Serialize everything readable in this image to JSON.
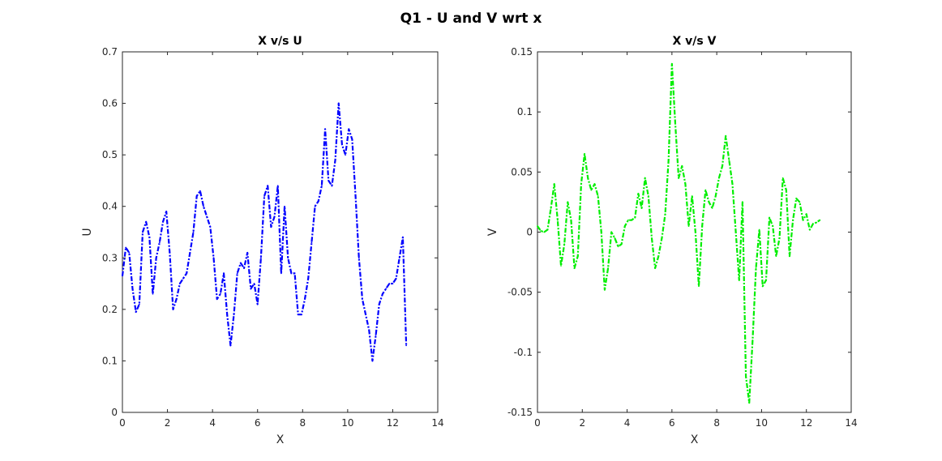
{
  "figure": {
    "title": "Q1 - U and V wrt x"
  },
  "chart_data": [
    {
      "type": "line",
      "title": "X v/s U",
      "xlabel": "X",
      "ylabel": "U",
      "xlim": [
        0,
        14
      ],
      "ylim": [
        0,
        0.7
      ],
      "xticks": [
        0,
        2,
        4,
        6,
        8,
        10,
        12,
        14
      ],
      "yticks": [
        0,
        0.1,
        0.2,
        0.3,
        0.4,
        0.5,
        0.6,
        0.7
      ],
      "xticklabels": [
        "0",
        "2",
        "4",
        "6",
        "8",
        "10",
        "12",
        "14"
      ],
      "yticklabels": [
        "0",
        "0.1",
        "0.2",
        "0.3",
        "0.4",
        "0.5",
        "0.6",
        "0.7"
      ],
      "grid": false,
      "series": [
        {
          "color": "#0000ff",
          "line_style": "dash-dot",
          "x": [
            0,
            0.15,
            0.3,
            0.45,
            0.6,
            0.75,
            0.9,
            1.05,
            1.2,
            1.35,
            1.5,
            1.65,
            1.8,
            1.95,
            2.1,
            2.25,
            2.4,
            2.55,
            2.7,
            2.85,
            3.0,
            3.15,
            3.3,
            3.45,
            3.6,
            3.75,
            3.9,
            4.05,
            4.2,
            4.35,
            4.5,
            4.65,
            4.8,
            4.95,
            5.1,
            5.25,
            5.4,
            5.55,
            5.7,
            5.85,
            6.0,
            6.15,
            6.3,
            6.45,
            6.6,
            6.75,
            6.9,
            7.05,
            7.2,
            7.35,
            7.5,
            7.65,
            7.8,
            7.95,
            8.1,
            8.25,
            8.4,
            8.55,
            8.7,
            8.85,
            9.0,
            9.15,
            9.3,
            9.45,
            9.6,
            9.75,
            9.9,
            10.05,
            10.2,
            10.35,
            10.5,
            10.65,
            10.8,
            10.95,
            11.1,
            11.25,
            11.4,
            11.55,
            11.7,
            11.85,
            12.0,
            12.15,
            12.3,
            12.45,
            12.6
          ],
          "y": [
            0.265,
            0.32,
            0.31,
            0.24,
            0.195,
            0.21,
            0.35,
            0.37,
            0.34,
            0.23,
            0.3,
            0.33,
            0.37,
            0.39,
            0.31,
            0.2,
            0.22,
            0.25,
            0.26,
            0.27,
            0.31,
            0.35,
            0.42,
            0.43,
            0.4,
            0.38,
            0.36,
            0.3,
            0.22,
            0.23,
            0.27,
            0.19,
            0.13,
            0.19,
            0.27,
            0.29,
            0.28,
            0.31,
            0.24,
            0.25,
            0.21,
            0.3,
            0.42,
            0.44,
            0.36,
            0.38,
            0.44,
            0.27,
            0.4,
            0.3,
            0.27,
            0.27,
            0.19,
            0.19,
            0.22,
            0.26,
            0.33,
            0.4,
            0.41,
            0.44,
            0.55,
            0.45,
            0.44,
            0.49,
            0.6,
            0.52,
            0.5,
            0.55,
            0.53,
            0.42,
            0.3,
            0.22,
            0.19,
            0.16,
            0.1,
            0.15,
            0.21,
            0.23,
            0.24,
            0.25,
            0.25,
            0.26,
            0.3,
            0.34,
            0.13
          ]
        }
      ]
    },
    {
      "type": "line",
      "title": "X v/s V",
      "xlabel": "X",
      "ylabel": "V",
      "xlim": [
        0,
        14
      ],
      "ylim": [
        -0.15,
        0.15
      ],
      "xticks": [
        0,
        2,
        4,
        6,
        8,
        10,
        12,
        14
      ],
      "yticks": [
        -0.15,
        -0.1,
        -0.05,
        0,
        0.05,
        0.1,
        0.15
      ],
      "xticklabels": [
        "0",
        "2",
        "4",
        "6",
        "8",
        "10",
        "12",
        "14"
      ],
      "yticklabels": [
        "-0.15",
        "-0.1",
        "-0.05",
        "0",
        "0.05",
        "0.1",
        "0.15"
      ],
      "grid": false,
      "series": [
        {
          "color": "#00ee00",
          "line_style": "dash-dot",
          "x": [
            0,
            0.15,
            0.3,
            0.45,
            0.6,
            0.75,
            0.9,
            1.05,
            1.2,
            1.35,
            1.5,
            1.65,
            1.8,
            1.95,
            2.1,
            2.25,
            2.4,
            2.55,
            2.7,
            2.85,
            3.0,
            3.15,
            3.3,
            3.45,
            3.6,
            3.75,
            3.9,
            4.05,
            4.2,
            4.35,
            4.5,
            4.65,
            4.8,
            4.95,
            5.1,
            5.25,
            5.4,
            5.55,
            5.7,
            5.85,
            6.0,
            6.15,
            6.3,
            6.45,
            6.6,
            6.75,
            6.9,
            7.05,
            7.2,
            7.35,
            7.5,
            7.65,
            7.8,
            7.95,
            8.1,
            8.25,
            8.4,
            8.55,
            8.7,
            8.85,
            9.0,
            9.15,
            9.3,
            9.45,
            9.6,
            9.75,
            9.9,
            10.05,
            10.2,
            10.35,
            10.5,
            10.65,
            10.8,
            10.95,
            11.1,
            11.25,
            11.4,
            11.55,
            11.7,
            11.85,
            12.0,
            12.15,
            12.3,
            12.45,
            12.6
          ],
          "y": [
            0.005,
            0.001,
            0.0,
            0.002,
            0.02,
            0.04,
            0.01,
            -0.028,
            -0.01,
            0.025,
            0.01,
            -0.03,
            -0.02,
            0.04,
            0.065,
            0.045,
            0.035,
            0.04,
            0.03,
            0.0,
            -0.048,
            -0.03,
            0.0,
            -0.005,
            -0.012,
            -0.01,
            0.005,
            0.01,
            0.01,
            0.012,
            0.032,
            0.02,
            0.045,
            0.03,
            -0.005,
            -0.03,
            -0.02,
            -0.005,
            0.015,
            0.06,
            0.14,
            0.09,
            0.045,
            0.055,
            0.04,
            0.005,
            0.03,
            0.0,
            -0.045,
            0.005,
            0.035,
            0.025,
            0.02,
            0.03,
            0.045,
            0.055,
            0.08,
            0.06,
            0.04,
            0.0,
            -0.04,
            0.025,
            -0.12,
            -0.142,
            -0.09,
            -0.03,
            0.002,
            -0.045,
            -0.04,
            0.012,
            0.005,
            -0.02,
            -0.005,
            0.045,
            0.035,
            -0.02,
            0.01,
            0.028,
            0.025,
            0.01,
            0.015,
            0.002,
            0.007,
            0.008,
            0.01
          ]
        }
      ]
    }
  ]
}
